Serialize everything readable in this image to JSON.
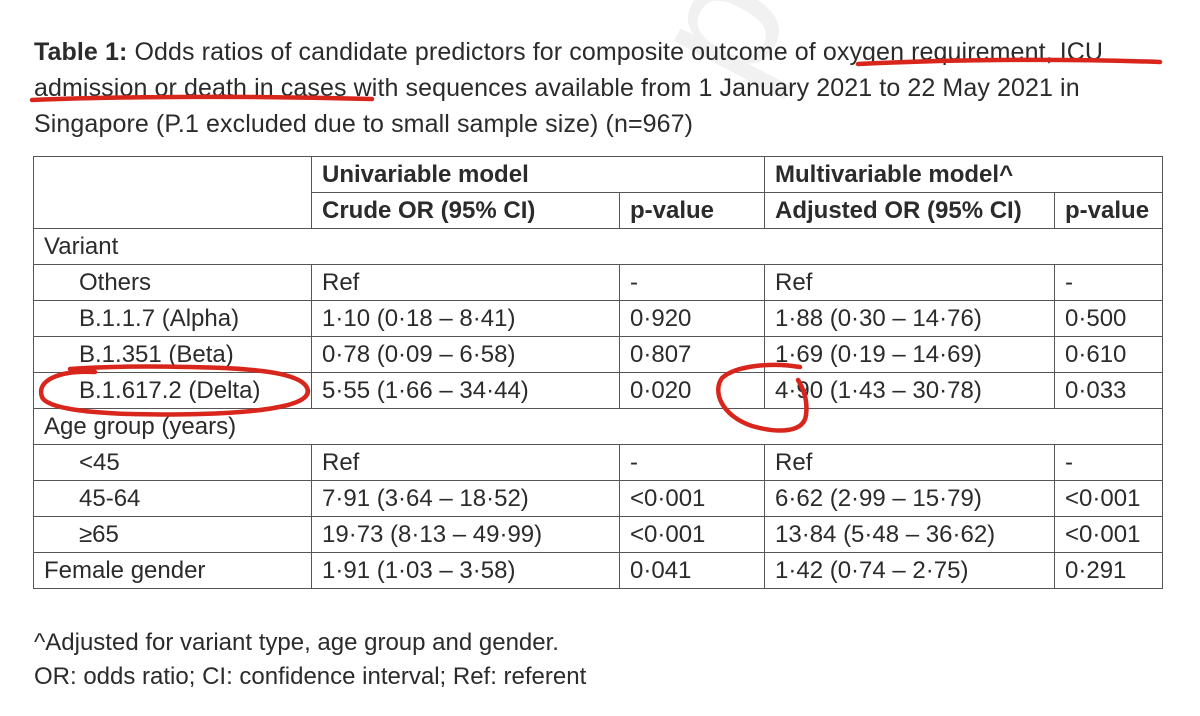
{
  "watermark": "peer reviewed",
  "caption": {
    "label": "Table 1:",
    "text": " Odds ratios of candidate predictors for composite outcome of oxygen requirement, ICU admission or death in cases with sequences available from 1 January 2021 to 22 May 2021 in Singapore (P.1 excluded due to small sample size) (n=967)"
  },
  "table": {
    "header": {
      "univariable": "Univariable model",
      "multivariable": "Multivariable model^",
      "crude_or": "Crude OR (95% CI)",
      "pvalue1": "p-value",
      "adjusted_or": "Adjusted OR (95% CI)",
      "pvalue2": "p-value"
    },
    "rows": [
      {
        "label": "Variant",
        "group": true
      },
      {
        "label": "Others",
        "crude": "Ref",
        "p1": "-",
        "adj": "Ref",
        "p2": "-"
      },
      {
        "label": "B.1.1.7 (Alpha)",
        "crude": "1·10 (0·18 – 8·41)",
        "p1": "0·920",
        "adj": "1·88 (0·30 – 14·76)",
        "p2": "0·500"
      },
      {
        "label": "B.1.351 (Beta)",
        "crude": "0·78 (0·09 – 6·58)",
        "p1": "0·807",
        "adj": "1·69 (0·19 – 14·69)",
        "p2": "0·610"
      },
      {
        "label": "B.1.617.2 (Delta)",
        "crude": "5·55 (1·66 – 34·44)",
        "p1": "0·020",
        "adj": "4·90 (1·43 – 30·78)",
        "p2": "0·033"
      },
      {
        "label": "Age group (years)",
        "group": true
      },
      {
        "label": "<45",
        "crude": "Ref",
        "p1": "-",
        "adj": "Ref",
        "p2": "-"
      },
      {
        "label": "45-64",
        "crude": "7·91 (3·64 – 18·52)",
        "p1": "<0·001",
        "adj": "6·62 (2·99 – 15·79)",
        "p2": "<0·001"
      },
      {
        "label": "≥65",
        "crude": "19·73 (8·13 – 49·99)",
        "p1": "<0·001",
        "adj": "13·84 (5·48 – 36·62)",
        "p2": "<0·001"
      },
      {
        "label": "Female gender",
        "crude": "1·91 (1·03 – 3·58)",
        "p1": "0·041",
        "adj": "1·42 (0·74 – 2·75)",
        "p2": "0·291"
      }
    ]
  },
  "footnotes": [
    "^Adjusted for variant type, age group and gender.",
    "OR: odds ratio; CI: confidence interval; Ref: referent"
  ],
  "annotation_color": "#d8261c"
}
